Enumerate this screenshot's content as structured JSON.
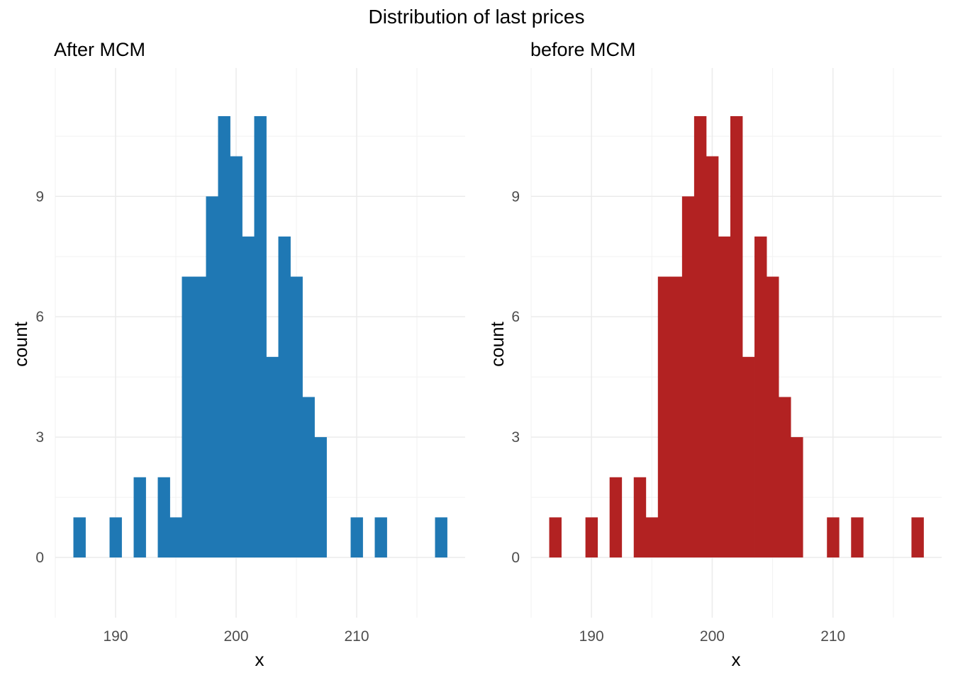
{
  "title": "Distribution of last prices",
  "chart_data": [
    {
      "type": "bar",
      "subtitle": "After MCM",
      "xlabel": "x",
      "ylabel": "count",
      "color": "#1f78b4",
      "xlim": [
        185,
        219
      ],
      "ylim": [
        -1.5,
        12.2
      ],
      "xticks": [
        190,
        200,
        210
      ],
      "yticks": [
        0,
        3,
        6,
        9
      ],
      "grid": true,
      "legend": "none",
      "bins": [
        {
          "x0": 186.5,
          "x1": 187.5,
          "count": 1
        },
        {
          "x0": 187.5,
          "x1": 188.5,
          "count": 0
        },
        {
          "x0": 188.5,
          "x1": 189.5,
          "count": 0
        },
        {
          "x0": 189.5,
          "x1": 190.5,
          "count": 1
        },
        {
          "x0": 190.5,
          "x1": 191.5,
          "count": 0
        },
        {
          "x0": 191.5,
          "x1": 192.5,
          "count": 2
        },
        {
          "x0": 192.5,
          "x1": 193.5,
          "count": 0
        },
        {
          "x0": 193.5,
          "x1": 194.5,
          "count": 2
        },
        {
          "x0": 194.5,
          "x1": 195.5,
          "count": 1
        },
        {
          "x0": 195.5,
          "x1": 196.5,
          "count": 7
        },
        {
          "x0": 196.5,
          "x1": 197.5,
          "count": 7
        },
        {
          "x0": 197.5,
          "x1": 198.5,
          "count": 9
        },
        {
          "x0": 198.5,
          "x1": 199.5,
          "count": 11
        },
        {
          "x0": 199.5,
          "x1": 200.5,
          "count": 10
        },
        {
          "x0": 200.5,
          "x1": 201.5,
          "count": 8
        },
        {
          "x0": 201.5,
          "x1": 202.5,
          "count": 11
        },
        {
          "x0": 202.5,
          "x1": 203.5,
          "count": 5
        },
        {
          "x0": 203.5,
          "x1": 204.5,
          "count": 8
        },
        {
          "x0": 204.5,
          "x1": 205.5,
          "count": 7
        },
        {
          "x0": 205.5,
          "x1": 206.5,
          "count": 4
        },
        {
          "x0": 206.5,
          "x1": 207.5,
          "count": 3
        },
        {
          "x0": 207.5,
          "x1": 208.5,
          "count": 0
        },
        {
          "x0": 208.5,
          "x1": 209.5,
          "count": 0
        },
        {
          "x0": 209.5,
          "x1": 210.5,
          "count": 1
        },
        {
          "x0": 210.5,
          "x1": 211.5,
          "count": 0
        },
        {
          "x0": 211.5,
          "x1": 212.5,
          "count": 1
        },
        {
          "x0": 212.5,
          "x1": 213.5,
          "count": 0
        },
        {
          "x0": 213.5,
          "x1": 214.5,
          "count": 0
        },
        {
          "x0": 214.5,
          "x1": 215.5,
          "count": 0
        },
        {
          "x0": 215.5,
          "x1": 216.5,
          "count": 0
        },
        {
          "x0": 216.5,
          "x1": 217.5,
          "count": 1
        }
      ]
    },
    {
      "type": "bar",
      "subtitle": "before MCM",
      "xlabel": "x",
      "ylabel": "count",
      "color": "#b22222",
      "xlim": [
        185,
        219
      ],
      "ylim": [
        -1.5,
        12.2
      ],
      "xticks": [
        190,
        200,
        210
      ],
      "yticks": [
        0,
        3,
        6,
        9
      ],
      "grid": true,
      "legend": "none",
      "bins": [
        {
          "x0": 186.5,
          "x1": 187.5,
          "count": 1
        },
        {
          "x0": 187.5,
          "x1": 188.5,
          "count": 0
        },
        {
          "x0": 188.5,
          "x1": 189.5,
          "count": 0
        },
        {
          "x0": 189.5,
          "x1": 190.5,
          "count": 1
        },
        {
          "x0": 190.5,
          "x1": 191.5,
          "count": 0
        },
        {
          "x0": 191.5,
          "x1": 192.5,
          "count": 2
        },
        {
          "x0": 192.5,
          "x1": 193.5,
          "count": 0
        },
        {
          "x0": 193.5,
          "x1": 194.5,
          "count": 2
        },
        {
          "x0": 194.5,
          "x1": 195.5,
          "count": 1
        },
        {
          "x0": 195.5,
          "x1": 196.5,
          "count": 7
        },
        {
          "x0": 196.5,
          "x1": 197.5,
          "count": 7
        },
        {
          "x0": 197.5,
          "x1": 198.5,
          "count": 9
        },
        {
          "x0": 198.5,
          "x1": 199.5,
          "count": 11
        },
        {
          "x0": 199.5,
          "x1": 200.5,
          "count": 10
        },
        {
          "x0": 200.5,
          "x1": 201.5,
          "count": 8
        },
        {
          "x0": 201.5,
          "x1": 202.5,
          "count": 11
        },
        {
          "x0": 202.5,
          "x1": 203.5,
          "count": 5
        },
        {
          "x0": 203.5,
          "x1": 204.5,
          "count": 8
        },
        {
          "x0": 204.5,
          "x1": 205.5,
          "count": 7
        },
        {
          "x0": 205.5,
          "x1": 206.5,
          "count": 4
        },
        {
          "x0": 206.5,
          "x1": 207.5,
          "count": 3
        },
        {
          "x0": 207.5,
          "x1": 208.5,
          "count": 0
        },
        {
          "x0": 208.5,
          "x1": 209.5,
          "count": 0
        },
        {
          "x0": 209.5,
          "x1": 210.5,
          "count": 1
        },
        {
          "x0": 210.5,
          "x1": 211.5,
          "count": 0
        },
        {
          "x0": 211.5,
          "x1": 212.5,
          "count": 1
        },
        {
          "x0": 212.5,
          "x1": 213.5,
          "count": 0
        },
        {
          "x0": 213.5,
          "x1": 214.5,
          "count": 0
        },
        {
          "x0": 214.5,
          "x1": 215.5,
          "count": 0
        },
        {
          "x0": 215.5,
          "x1": 216.5,
          "count": 0
        },
        {
          "x0": 216.5,
          "x1": 217.5,
          "count": 1
        }
      ]
    }
  ]
}
